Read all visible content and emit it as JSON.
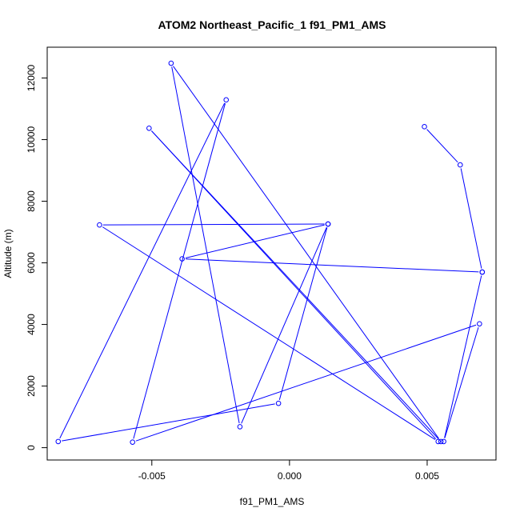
{
  "chart_data": {
    "type": "line",
    "title": "ATOM2 Northeast_Pacific_1 f91_PM1_AMS",
    "xlabel": "f91_PM1_AMS",
    "ylabel": "Altitude (m)",
    "xlim": [
      -0.0088,
      0.0075
    ],
    "ylim": [
      -400,
      13000
    ],
    "xticks": [
      -0.005,
      0.0,
      0.005
    ],
    "xtick_labels": [
      "-0.005",
      "0.000",
      "0.005"
    ],
    "yticks": [
      0,
      2000,
      4000,
      6000,
      8000,
      10000,
      12000
    ],
    "ytick_labels": [
      "0",
      "2000",
      "4000",
      "6000",
      "8000",
      "10000",
      "12000"
    ],
    "grid": false,
    "series": [
      {
        "color": "#0000ff",
        "marker": "open-circle",
        "x": [
          0.0049,
          0.0062,
          0.007,
          -0.0039,
          0.0014,
          -0.0018,
          -0.0043,
          0.0055,
          -0.0051,
          0.0054,
          -0.0069,
          0.0014,
          -0.0004,
          -0.0084,
          -0.0023,
          -0.0057,
          0.0069,
          0.0056,
          0.007
        ],
        "y": [
          10420,
          9180,
          5700,
          6130,
          7260,
          680,
          12480,
          200,
          10370,
          200,
          7230,
          7260,
          1440,
          200,
          11290,
          180,
          4020,
          200,
          5700
        ]
      }
    ]
  }
}
